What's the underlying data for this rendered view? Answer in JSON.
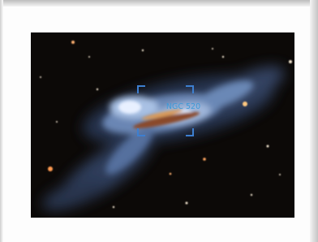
{
  "annotation": {
    "label": "NGC 520"
  }
}
